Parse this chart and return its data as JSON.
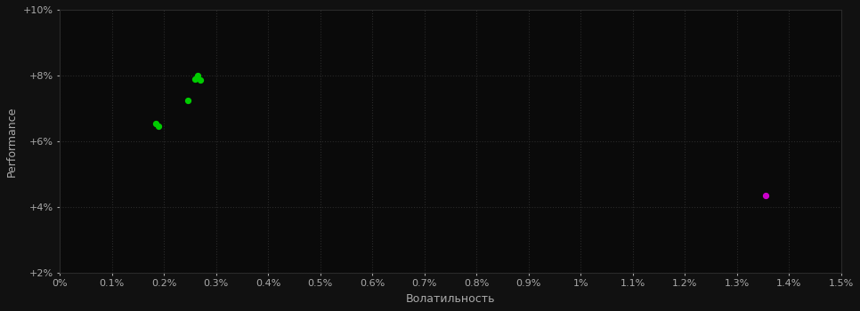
{
  "background_color": "#111111",
  "plot_bg_color": "#0a0a0a",
  "grid_color": "#2a2a2a",
  "grid_style": ":",
  "xlabel": "Волатильность",
  "ylabel": "Performance",
  "xlim": [
    0.0,
    1.5
  ],
  "ylim": [
    2.0,
    10.0
  ],
  "xtick_labels": [
    "0%",
    "0.1%",
    "0.2%",
    "0.3%",
    "0.4%",
    "0.5%",
    "0.6%",
    "0.7%",
    "0.8%",
    "0.9%",
    "1%",
    "1.1%",
    "1.2%",
    "1.3%",
    "1.4%",
    "1.5%"
  ],
  "xtick_values": [
    0.0,
    0.1,
    0.2,
    0.3,
    0.4,
    0.5,
    0.6,
    0.7,
    0.8,
    0.9,
    1.0,
    1.1,
    1.2,
    1.3,
    1.4,
    1.5
  ],
  "ytick_labels": [
    "+2%",
    "+4%",
    "+6%",
    "+8%",
    "+10%"
  ],
  "ytick_values": [
    2.0,
    4.0,
    6.0,
    8.0,
    10.0
  ],
  "green_points": [
    [
      0.185,
      6.55
    ],
    [
      0.19,
      6.45
    ],
    [
      0.245,
      7.25
    ],
    [
      0.26,
      7.9
    ],
    [
      0.265,
      8.0
    ],
    [
      0.27,
      7.85
    ]
  ],
  "magenta_points": [
    [
      1.355,
      4.35
    ]
  ],
  "point_size": 18,
  "green_color": "#00cc00",
  "magenta_color": "#cc00cc",
  "xlabel_color": "#aaaaaa",
  "ylabel_color": "#aaaaaa",
  "tick_color": "#aaaaaa",
  "tick_fontsize": 8,
  "label_fontsize": 9
}
